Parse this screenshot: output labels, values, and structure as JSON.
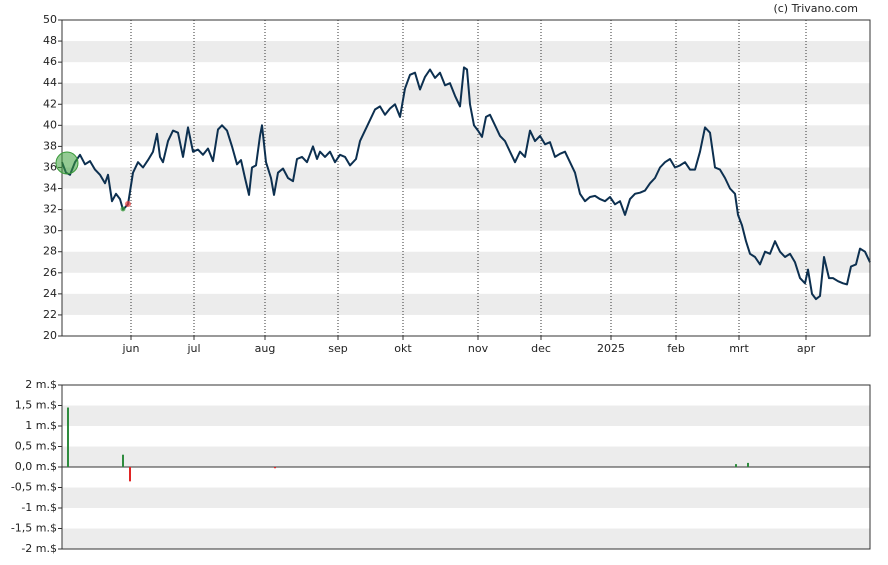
{
  "source": "(c) Trivano.com",
  "chart_data": [
    {
      "type": "line",
      "x": [
        0,
        4,
        8,
        13,
        18,
        23,
        28,
        33,
        38,
        43,
        46,
        50,
        54,
        58,
        61,
        66,
        71,
        76,
        81,
        86,
        91,
        95,
        98,
        101,
        106,
        111,
        116,
        121,
        126,
        131,
        136,
        141,
        146,
        151,
        156,
        160,
        165,
        170,
        175,
        179,
        183,
        187,
        190,
        194,
        198,
        200,
        204,
        209,
        212,
        216,
        221,
        226,
        231,
        235,
        240,
        245,
        251,
        255,
        258,
        263,
        268,
        273,
        278,
        283,
        288,
        294,
        298,
        303,
        308,
        313,
        318,
        323,
        328,
        333,
        338,
        343,
        348,
        353,
        358,
        363,
        368,
        373,
        378,
        383,
        388,
        393,
        398,
        402,
        405,
        408,
        412,
        416,
        420,
        424,
        428,
        433,
        438,
        443,
        448,
        453,
        458,
        463,
        468,
        473,
        478,
        483,
        488,
        493,
        498,
        503,
        508,
        513,
        518,
        523,
        528,
        533,
        538,
        543,
        548,
        553,
        558,
        563,
        568,
        573,
        578,
        583,
        588,
        593,
        598,
        603,
        608,
        613,
        618,
        623,
        628,
        633,
        638,
        643,
        648,
        653,
        658,
        663,
        668,
        673,
        676,
        680,
        684,
        688,
        693,
        698,
        703,
        708,
        713,
        718,
        723,
        728,
        733,
        738,
        743,
        746,
        750,
        754,
        758,
        762,
        767,
        771,
        776,
        781,
        785,
        789,
        794,
        798,
        803,
        808
      ],
      "values": [
        36.5,
        35.5,
        35.3,
        36.5,
        37.2,
        36.3,
        36.6,
        35.8,
        35.3,
        34.5,
        35.3,
        32.8,
        33.5,
        33.0,
        32.0,
        32.5,
        35.5,
        36.5,
        36.0,
        36.7,
        37.5,
        39.2,
        37.0,
        36.5,
        38.5,
        39.5,
        39.3,
        37.0,
        39.8,
        37.5,
        37.7,
        37.2,
        37.8,
        36.6,
        39.6,
        40.0,
        39.5,
        38.0,
        36.3,
        36.7,
        35.0,
        33.4,
        36.0,
        36.2,
        39.0,
        40.0,
        36.5,
        35.0,
        33.4,
        35.5,
        35.9,
        35.0,
        34.7,
        36.8,
        37.0,
        36.5,
        38.0,
        36.8,
        37.5,
        37.0,
        37.5,
        36.5,
        37.2,
        37.0,
        36.2,
        36.8,
        38.5,
        39.5,
        40.5,
        41.5,
        41.8,
        41.0,
        41.6,
        42.0,
        40.8,
        43.5,
        44.8,
        45.0,
        43.4,
        44.6,
        45.3,
        44.5,
        45.0,
        43.8,
        44.0,
        42.8,
        41.8,
        45.5,
        45.3,
        42.0,
        40.0,
        39.5,
        38.9,
        40.8,
        41.0,
        40.0,
        39.0,
        38.5,
        37.5,
        36.5,
        37.5,
        37.0,
        39.5,
        38.5,
        39.0,
        38.2,
        38.4,
        37.0,
        37.3,
        37.5,
        36.5,
        35.5,
        33.5,
        32.8,
        33.2,
        33.3,
        33.0,
        32.8,
        33.2,
        32.5,
        32.8,
        31.5,
        33.0,
        33.5,
        33.6,
        33.8,
        34.5,
        35.0,
        36.0,
        36.5,
        36.8,
        36.0,
        36.2,
        36.5,
        35.8,
        35.8,
        37.5,
        39.8,
        39.3,
        36.0,
        35.8,
        35.0,
        34.0,
        33.5,
        31.5,
        30.5,
        29.0,
        27.8,
        27.5,
        26.8,
        28.0,
        27.8,
        29.0,
        28.0,
        27.5,
        27.8,
        27.0,
        25.5,
        25.0,
        26.3,
        24.0,
        23.5,
        23.8,
        27.5,
        25.5,
        25.5,
        25.2,
        25.0,
        24.9,
        26.6,
        26.8,
        28.3,
        28.0,
        27.0
      ],
      "color": "#0d3050",
      "xlim": [
        0,
        808
      ],
      "xticks": [
        {
          "value": 69,
          "label": "jun"
        },
        {
          "value": 132,
          "label": "jul"
        },
        {
          "value": 203,
          "label": "aug"
        },
        {
          "value": 276,
          "label": "sep"
        },
        {
          "value": 341,
          "label": "okt"
        },
        {
          "value": 416,
          "label": "nov"
        },
        {
          "value": 479,
          "label": "dec"
        },
        {
          "value": 549,
          "label": "2025"
        },
        {
          "value": 614,
          "label": "feb"
        },
        {
          "value": 677,
          "label": "mrt"
        },
        {
          "value": 744,
          "label": "apr"
        }
      ],
      "ylim": [
        20,
        50
      ],
      "yticks": [
        20,
        22,
        24,
        26,
        28,
        30,
        32,
        34,
        36,
        38,
        40,
        42,
        44,
        46,
        48,
        50
      ],
      "grid": true
    },
    {
      "type": "bar",
      "x": [
        6,
        61,
        68,
        213,
        674,
        686
      ],
      "values": [
        1.45,
        0.3,
        -0.35,
        -0.03,
        0.07,
        0.1
      ],
      "up_color": "#2e8b3e",
      "down_color": "#e02424",
      "xlim": [
        0,
        808
      ],
      "ylim": [
        -2,
        2
      ],
      "yticks": [
        {
          "value": 2,
          "label": "2 m.$"
        },
        {
          "value": 1.5,
          "label": "1,5 m.$"
        },
        {
          "value": 1,
          "label": "1 m.$"
        },
        {
          "value": 0.5,
          "label": "0,5 m.$"
        },
        {
          "value": 0,
          "label": "0,0 m.$"
        },
        {
          "value": -0.5,
          "label": "-0,5 m.$"
        },
        {
          "value": -1,
          "label": "-1 m.$"
        },
        {
          "value": -1.5,
          "label": "-1,5 m.$"
        },
        {
          "value": -2,
          "label": "-2 m.$"
        }
      ],
      "grid": true
    }
  ]
}
